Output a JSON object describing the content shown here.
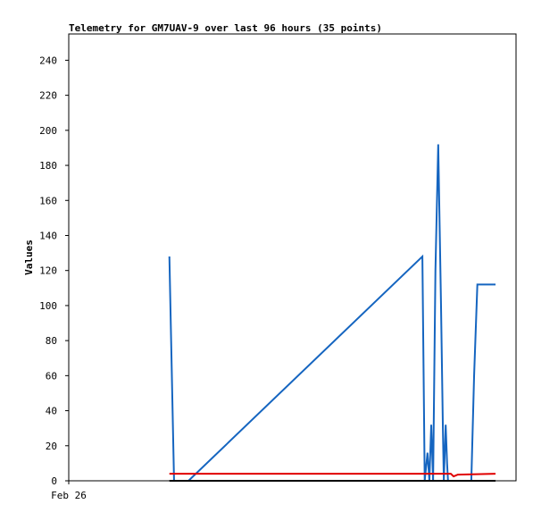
{
  "chart_data": {
    "type": "line",
    "title": "Telemetry for GM7UAV-9 over last 96 hours (35 points)",
    "y_label": "Values",
    "xlim": [
      0,
      96
    ],
    "xticks": [
      {
        "value": 0,
        "label": "Feb 26"
      }
    ],
    "ylim": [
      0,
      255
    ],
    "yticks": [
      0,
      20,
      40,
      60,
      80,
      100,
      120,
      140,
      160,
      180,
      200,
      220,
      240
    ],
    "series": [
      {
        "color": "#1565c0",
        "x": [
          21.6,
          22.6,
          25.7,
          75.9,
          76.4,
          77.0,
          77.4,
          77.8,
          78.2,
          78.7,
          79.3,
          79.9,
          80.3,
          80.5,
          80.9,
          81.2,
          81.4,
          86.4,
          87.0,
          87.7,
          91.6
        ],
        "values": [
          128,
          0,
          0,
          128,
          0,
          16,
          0,
          32,
          0,
          120,
          192,
          100,
          30,
          0,
          32,
          10,
          0,
          0,
          60,
          112,
          112
        ]
      },
      {
        "color": "#e00000",
        "x": [
          21.6,
          82.0,
          82.6,
          83.5,
          91.6
        ],
        "values": [
          4,
          4,
          2.5,
          3.5,
          4
        ]
      },
      {
        "color": "#000000",
        "x": [
          21.6,
          91.6
        ],
        "values": [
          0,
          0
        ]
      }
    ]
  }
}
